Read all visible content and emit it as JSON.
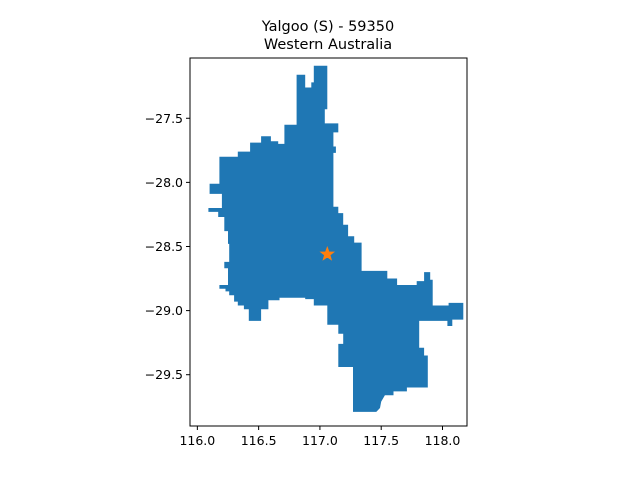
{
  "title": {
    "line1": "Yalgoo (S) - 59350",
    "line2": "Western Australia"
  },
  "colors": {
    "region_fill": "#1f77b4",
    "marker": "#ff7f0e",
    "axes": "#000000",
    "background": "#ffffff"
  },
  "chart_data": {
    "type": "map",
    "title": "Yalgoo (S) - 59350\nWestern Australia",
    "xlabel": "",
    "ylabel": "",
    "xlim": [
      115.94,
      118.2
    ],
    "ylim": [
      -29.9,
      -27.03
    ],
    "grid": false,
    "x_ticks": [
      {
        "value": 116.0,
        "label": "116.0"
      },
      {
        "value": 116.5,
        "label": "116.5"
      },
      {
        "value": 117.0,
        "label": "117.0"
      },
      {
        "value": 117.5,
        "label": "117.5"
      },
      {
        "value": 118.0,
        "label": "118.0"
      }
    ],
    "y_ticks": [
      {
        "value": -27.5,
        "label": "−27.5"
      },
      {
        "value": -28.0,
        "label": "−28.0"
      },
      {
        "value": -28.5,
        "label": "−28.5"
      },
      {
        "value": -29.0,
        "label": "−29.0"
      },
      {
        "value": -29.5,
        "label": "−29.5"
      }
    ],
    "marker": {
      "lon": 117.06,
      "lat": -28.56,
      "symbol": "star"
    },
    "region_outline": [
      [
        116.81,
        -27.16
      ],
      [
        116.88,
        -27.16
      ],
      [
        116.88,
        -27.26
      ],
      [
        116.93,
        -27.26
      ],
      [
        116.93,
        -27.22
      ],
      [
        116.95,
        -27.22
      ],
      [
        116.95,
        -27.09
      ],
      [
        117.06,
        -27.09
      ],
      [
        117.06,
        -27.43
      ],
      [
        117.04,
        -27.43
      ],
      [
        117.04,
        -27.54
      ],
      [
        117.15,
        -27.54
      ],
      [
        117.15,
        -27.61
      ],
      [
        117.11,
        -27.61
      ],
      [
        117.11,
        -27.72
      ],
      [
        117.13,
        -27.72
      ],
      [
        117.13,
        -27.77
      ],
      [
        117.11,
        -27.77
      ],
      [
        117.11,
        -28.19
      ],
      [
        117.15,
        -28.19
      ],
      [
        117.15,
        -28.24
      ],
      [
        117.19,
        -28.24
      ],
      [
        117.19,
        -28.33
      ],
      [
        117.23,
        -28.33
      ],
      [
        117.23,
        -28.42
      ],
      [
        117.28,
        -28.42
      ],
      [
        117.28,
        -28.47
      ],
      [
        117.34,
        -28.47
      ],
      [
        117.34,
        -28.69
      ],
      [
        117.55,
        -28.69
      ],
      [
        117.55,
        -28.75
      ],
      [
        117.63,
        -28.75
      ],
      [
        117.63,
        -28.8
      ],
      [
        117.79,
        -28.8
      ],
      [
        117.79,
        -28.77
      ],
      [
        117.85,
        -28.77
      ],
      [
        117.85,
        -28.7
      ],
      [
        117.9,
        -28.7
      ],
      [
        117.9,
        -28.76
      ],
      [
        117.92,
        -28.76
      ],
      [
        117.92,
        -28.96
      ],
      [
        118.05,
        -28.96
      ],
      [
        118.05,
        -28.94
      ],
      [
        118.17,
        -28.94
      ],
      [
        118.17,
        -29.07
      ],
      [
        118.08,
        -29.07
      ],
      [
        118.08,
        -29.12
      ],
      [
        118.04,
        -29.12
      ],
      [
        118.04,
        -29.08
      ],
      [
        117.81,
        -29.08
      ],
      [
        117.81,
        -29.29
      ],
      [
        117.85,
        -29.29
      ],
      [
        117.85,
        -29.35
      ],
      [
        117.88,
        -29.35
      ],
      [
        117.88,
        -29.6
      ],
      [
        117.71,
        -29.6
      ],
      [
        117.71,
        -29.63
      ],
      [
        117.6,
        -29.63
      ],
      [
        117.6,
        -29.66
      ],
      [
        117.53,
        -29.66
      ],
      [
        117.5,
        -29.71
      ],
      [
        117.49,
        -29.76
      ],
      [
        117.46,
        -29.79
      ],
      [
        117.27,
        -29.79
      ],
      [
        117.27,
        -29.44
      ],
      [
        117.27,
        -29.44
      ],
      [
        117.15,
        -29.44
      ],
      [
        117.15,
        -29.26
      ],
      [
        117.19,
        -29.26
      ],
      [
        117.19,
        -29.18
      ],
      [
        117.15,
        -29.18
      ],
      [
        117.15,
        -29.11
      ],
      [
        117.06,
        -29.11
      ],
      [
        117.06,
        -28.96
      ],
      [
        116.95,
        -28.96
      ],
      [
        116.95,
        -28.91
      ],
      [
        116.88,
        -28.91
      ],
      [
        116.88,
        -28.9
      ],
      [
        116.67,
        -28.9
      ],
      [
        116.67,
        -28.92
      ],
      [
        116.58,
        -28.92
      ],
      [
        116.58,
        -28.99
      ],
      [
        116.52,
        -28.99
      ],
      [
        116.52,
        -29.08
      ],
      [
        116.42,
        -29.08
      ],
      [
        116.42,
        -28.99
      ],
      [
        116.38,
        -28.99
      ],
      [
        116.38,
        -28.96
      ],
      [
        116.33,
        -28.96
      ],
      [
        116.33,
        -28.93
      ],
      [
        116.3,
        -28.93
      ],
      [
        116.3,
        -28.88
      ],
      [
        116.26,
        -28.88
      ],
      [
        116.26,
        -28.85
      ],
      [
        116.23,
        -28.85
      ],
      [
        116.23,
        -28.83
      ],
      [
        116.18,
        -28.83
      ],
      [
        116.18,
        -28.8
      ],
      [
        116.25,
        -28.8
      ],
      [
        116.25,
        -28.67
      ],
      [
        116.22,
        -28.67
      ],
      [
        116.22,
        -28.62
      ],
      [
        116.26,
        -28.62
      ],
      [
        116.26,
        -28.48
      ],
      [
        116.25,
        -28.48
      ],
      [
        116.25,
        -28.38
      ],
      [
        116.22,
        -28.38
      ],
      [
        116.22,
        -28.27
      ],
      [
        116.17,
        -28.27
      ],
      [
        116.17,
        -28.23
      ],
      [
        116.09,
        -28.23
      ],
      [
        116.09,
        -28.2
      ],
      [
        116.2,
        -28.2
      ],
      [
        116.2,
        -28.09
      ],
      [
        116.1,
        -28.09
      ],
      [
        116.1,
        -28.01
      ],
      [
        116.18,
        -28.01
      ],
      [
        116.18,
        -27.8
      ],
      [
        116.33,
        -27.8
      ],
      [
        116.33,
        -27.76
      ],
      [
        116.43,
        -27.76
      ],
      [
        116.43,
        -27.69
      ],
      [
        116.52,
        -27.69
      ],
      [
        116.52,
        -27.64
      ],
      [
        116.6,
        -27.64
      ],
      [
        116.6,
        -27.68
      ],
      [
        116.66,
        -27.68
      ],
      [
        116.66,
        -27.7
      ],
      [
        116.71,
        -27.7
      ],
      [
        116.71,
        -27.55
      ],
      [
        116.81,
        -27.55
      ],
      [
        116.81,
        -27.16
      ]
    ]
  }
}
